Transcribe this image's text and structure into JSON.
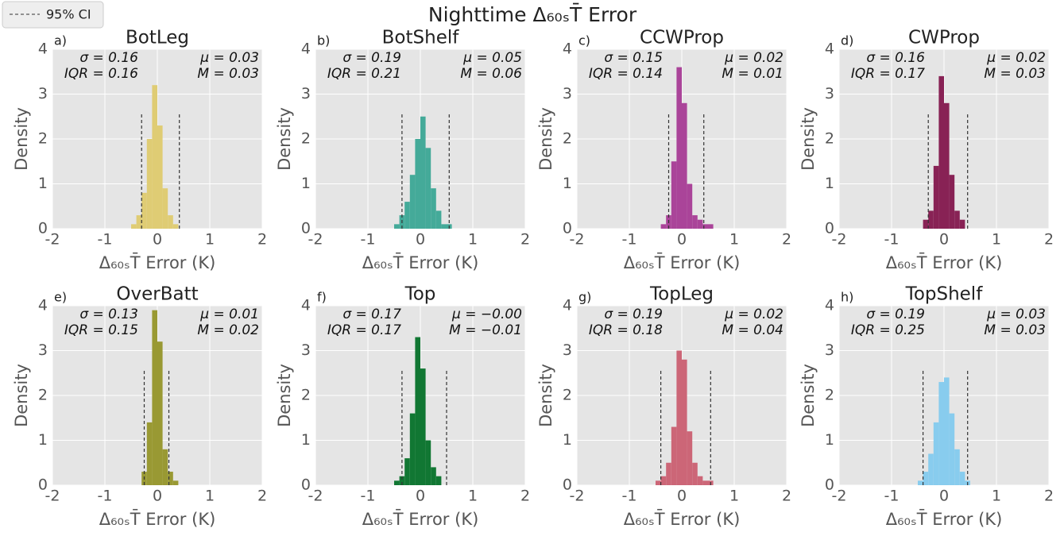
{
  "figure": {
    "title": "Nighttime Δ₆₀ₛT̄ Error",
    "ci_label": "95% CI"
  },
  "chart_data": [
    {
      "type": "histogram",
      "panel": "a)",
      "title": "BotLeg",
      "color": "#dfcc74",
      "bins": [
        -0.6,
        -0.5,
        -0.4,
        -0.3,
        -0.2,
        -0.1,
        0,
        0.1,
        0.2,
        0.3,
        0.4,
        0.5,
        0.6,
        0.7,
        0.8
      ],
      "values": [
        0,
        0.1,
        0.3,
        0.8,
        2.0,
        3.2,
        2.3,
        0.9,
        0.3,
        0.1,
        0,
        0,
        0,
        0
      ],
      "ci": [
        -0.3,
        0.42
      ],
      "stats": {
        "sigma": "σ = 0.16",
        "iqr": "IQR = 0.16",
        "mu": "μ = 0.03",
        "median": "M = 0.03"
      },
      "xlabel": "Δ₆₀ₛT̄ Error (K)",
      "ylabel": "Density",
      "xlim": [
        -2,
        2
      ],
      "ylim": [
        0,
        4
      ],
      "xticks": [
        -2,
        -1,
        0,
        1,
        2
      ],
      "yticks": [
        0,
        1,
        2,
        3,
        4
      ],
      "grid": true
    },
    {
      "type": "histogram",
      "panel": "b)",
      "title": "BotShelf",
      "color": "#44aa99",
      "bins": [
        -0.6,
        -0.5,
        -0.4,
        -0.3,
        -0.2,
        -0.1,
        0,
        0.1,
        0.2,
        0.3,
        0.4,
        0.5,
        0.6,
        0.7,
        0.8
      ],
      "values": [
        0,
        0.1,
        0.3,
        0.6,
        1.2,
        2.0,
        2.5,
        1.8,
        0.9,
        0.4,
        0.1,
        0.1,
        0,
        0
      ],
      "ci": [
        -0.35,
        0.55
      ],
      "stats": {
        "sigma": "σ = 0.19",
        "iqr": "IQR = 0.21",
        "mu": "μ = 0.05",
        "median": "M = 0.06"
      },
      "xlabel": "Δ₆₀ₛT̄ Error (K)",
      "ylabel": "Density",
      "xlim": [
        -2,
        2
      ],
      "ylim": [
        0,
        4
      ],
      "xticks": [
        -2,
        -1,
        0,
        1,
        2
      ],
      "yticks": [
        0,
        1,
        2,
        3,
        4
      ],
      "grid": true
    },
    {
      "type": "histogram",
      "panel": "c)",
      "title": "CCWProp",
      "color": "#aa4499",
      "bins": [
        -0.6,
        -0.5,
        -0.4,
        -0.3,
        -0.2,
        -0.1,
        0,
        0.1,
        0.2,
        0.3,
        0.4,
        0.5,
        0.6,
        0.7,
        0.8
      ],
      "values": [
        0,
        0,
        0.1,
        0.3,
        1.5,
        3.6,
        2.8,
        1.0,
        0.3,
        0.2,
        0.1,
        0.1,
        0,
        0
      ],
      "ci": [
        -0.25,
        0.42
      ],
      "stats": {
        "sigma": "σ = 0.15",
        "iqr": "IQR = 0.14",
        "mu": "μ = 0.02",
        "median": "M = 0.01"
      },
      "xlabel": "Δ₆₀ₛT̄ Error (K)",
      "ylabel": "Density",
      "xlim": [
        -2,
        2
      ],
      "ylim": [
        0,
        4
      ],
      "xticks": [
        -2,
        -1,
        0,
        1,
        2
      ],
      "yticks": [
        0,
        1,
        2,
        3,
        4
      ],
      "grid": true
    },
    {
      "type": "histogram",
      "panel": "d)",
      "title": "CWProp",
      "color": "#882255",
      "bins": [
        -0.6,
        -0.5,
        -0.4,
        -0.3,
        -0.2,
        -0.1,
        0,
        0.1,
        0.2,
        0.3,
        0.4,
        0.5,
        0.6,
        0.7,
        0.8
      ],
      "values": [
        0,
        0,
        0.2,
        0.4,
        1.4,
        3.4,
        2.8,
        1.2,
        0.4,
        0.2,
        0,
        0,
        0,
        0
      ],
      "ci": [
        -0.3,
        0.45
      ],
      "stats": {
        "sigma": "σ = 0.16",
        "iqr": "IQR = 0.17",
        "mu": "μ = 0.02",
        "median": "M = 0.03"
      },
      "xlabel": "Δ₆₀ₛT̄ Error (K)",
      "ylabel": "Density",
      "xlim": [
        -2,
        2
      ],
      "ylim": [
        0,
        4
      ],
      "xticks": [
        -2,
        -1,
        0,
        1,
        2
      ],
      "yticks": [
        0,
        1,
        2,
        3,
        4
      ],
      "grid": true
    },
    {
      "type": "histogram",
      "panel": "e)",
      "title": "OverBatt",
      "color": "#999933",
      "bins": [
        -0.6,
        -0.5,
        -0.4,
        -0.3,
        -0.2,
        -0.1,
        0,
        0.1,
        0.2,
        0.3,
        0.4,
        0.5,
        0.6,
        0.7,
        0.8
      ],
      "values": [
        0,
        0,
        0,
        0.3,
        1.4,
        3.9,
        3.2,
        0.8,
        0.3,
        0.1,
        0,
        0,
        0,
        0
      ],
      "ci": [
        -0.25,
        0.22
      ],
      "stats": {
        "sigma": "σ = 0.13",
        "iqr": "IQR = 0.15",
        "mu": "μ = 0.01",
        "median": "M = 0.02"
      },
      "xlabel": "Δ₆₀ₛT̄ Error (K)",
      "ylabel": "Density",
      "xlim": [
        -2,
        2
      ],
      "ylim": [
        0,
        4
      ],
      "xticks": [
        -2,
        -1,
        0,
        1,
        2
      ],
      "yticks": [
        0,
        1,
        2,
        3,
        4
      ],
      "grid": true
    },
    {
      "type": "histogram",
      "panel": "f)",
      "title": "Top",
      "color": "#117733",
      "bins": [
        -0.6,
        -0.5,
        -0.4,
        -0.3,
        -0.2,
        -0.1,
        0,
        0.1,
        0.2,
        0.3,
        0.4,
        0.5,
        0.6,
        0.7,
        0.8
      ],
      "values": [
        0,
        0.1,
        0.2,
        0.6,
        1.6,
        3.3,
        2.6,
        1.0,
        0.4,
        0.2,
        0,
        0,
        0,
        0
      ],
      "ci": [
        -0.35,
        0.5
      ],
      "stats": {
        "sigma": "σ = 0.17",
        "iqr": "IQR = 0.17",
        "mu": "μ = −0.00",
        "median": "M = −0.01"
      },
      "xlabel": "Δ₆₀ₛT̄ Error (K)",
      "ylabel": "Density",
      "xlim": [
        -2,
        2
      ],
      "ylim": [
        0,
        4
      ],
      "xticks": [
        -2,
        -1,
        0,
        1,
        2
      ],
      "yticks": [
        0,
        1,
        2,
        3,
        4
      ],
      "grid": true
    },
    {
      "type": "histogram",
      "panel": "g)",
      "title": "TopLeg",
      "color": "#cc6677",
      "bins": [
        -0.6,
        -0.5,
        -0.4,
        -0.3,
        -0.2,
        -0.1,
        0,
        0.1,
        0.2,
        0.3,
        0.4,
        0.5,
        0.6,
        0.7,
        0.8
      ],
      "values": [
        0,
        0.1,
        0.2,
        0.5,
        1.3,
        3.0,
        2.8,
        1.2,
        0.5,
        0.2,
        0.1,
        0.1,
        0,
        0
      ],
      "ci": [
        -0.4,
        0.55
      ],
      "stats": {
        "sigma": "σ = 0.19",
        "iqr": "IQR = 0.18",
        "mu": "μ = 0.02",
        "median": "M = 0.04"
      },
      "xlabel": "Δ₆₀ₛT̄ Error (K)",
      "ylabel": "Density",
      "xlim": [
        -2,
        2
      ],
      "ylim": [
        0,
        4
      ],
      "xticks": [
        -2,
        -1,
        0,
        1,
        2
      ],
      "yticks": [
        0,
        1,
        2,
        3,
        4
      ],
      "grid": true
    },
    {
      "type": "histogram",
      "panel": "h)",
      "title": "TopShelf",
      "color": "#88ccee",
      "bins": [
        -0.6,
        -0.5,
        -0.4,
        -0.3,
        -0.2,
        -0.1,
        0,
        0.1,
        0.2,
        0.3,
        0.4,
        0.5,
        0.6,
        0.7,
        0.8
      ],
      "values": [
        0,
        0.1,
        0.3,
        0.7,
        1.4,
        2.3,
        2.4,
        1.6,
        0.8,
        0.3,
        0.1,
        0,
        0,
        0
      ],
      "ci": [
        -0.4,
        0.45
      ],
      "stats": {
        "sigma": "σ = 0.19",
        "iqr": "IQR = 0.25",
        "mu": "μ = 0.03",
        "median": "M = 0.03"
      },
      "xlabel": "Δ₆₀ₛT̄ Error (K)",
      "ylabel": "Density",
      "xlim": [
        -2,
        2
      ],
      "ylim": [
        0,
        4
      ],
      "xticks": [
        -2,
        -1,
        0,
        1,
        2
      ],
      "yticks": [
        0,
        1,
        2,
        3,
        4
      ],
      "grid": true
    }
  ]
}
